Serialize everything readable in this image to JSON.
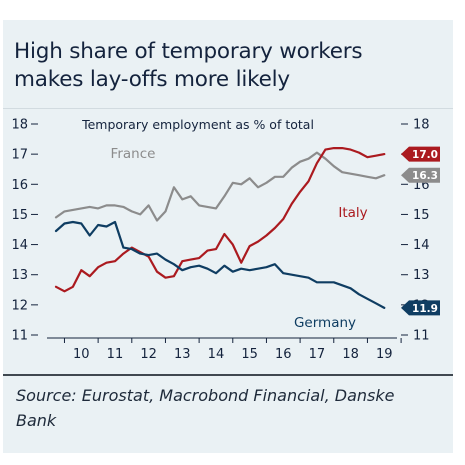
{
  "title": {
    "line1": "High share of temporary workers",
    "line2": "makes lay-offs  more likely"
  },
  "source": {
    "line1": "Source: Eurostat, Macrobond Financial, Danske",
    "line2": "Bank"
  },
  "chart_data": {
    "type": "line",
    "title": "Temporary employment as % of total",
    "ylim": [
      11,
      18
    ],
    "xlim": [
      2009.6,
      2019.7
    ],
    "y_ticks": [
      11,
      12,
      13,
      14,
      15,
      16,
      17,
      18
    ],
    "x_ticks": [
      10,
      11,
      12,
      13,
      14,
      15,
      16,
      17,
      18,
      19
    ],
    "grid": false,
    "series": [
      {
        "name": "France",
        "color": "#8c8c8c",
        "end_label": "16.3",
        "x": [
          2009.75,
          2010.0,
          2010.25,
          2010.5,
          2010.75,
          2011.0,
          2011.25,
          2011.5,
          2011.75,
          2012.0,
          2012.25,
          2012.5,
          2012.75,
          2013.0,
          2013.25,
          2013.5,
          2013.75,
          2014.0,
          2014.25,
          2014.5,
          2014.75,
          2015.0,
          2015.25,
          2015.5,
          2015.75,
          2016.0,
          2016.25,
          2016.5,
          2016.75,
          2017.0,
          2017.25,
          2017.5,
          2017.75,
          2018.0,
          2018.25,
          2018.5,
          2018.75,
          2019.0,
          2019.25,
          2019.5
        ],
        "y": [
          14.9,
          15.1,
          15.15,
          15.2,
          15.25,
          15.2,
          15.3,
          15.3,
          15.25,
          15.1,
          15.0,
          15.3,
          14.8,
          15.1,
          15.9,
          15.5,
          15.6,
          15.3,
          15.25,
          15.2,
          15.6,
          16.05,
          16.0,
          16.2,
          15.9,
          16.05,
          16.25,
          16.25,
          16.55,
          16.75,
          16.85,
          17.05,
          16.85,
          16.6,
          16.4,
          16.35,
          16.3,
          16.25,
          16.2,
          16.3
        ]
      },
      {
        "name": "Italy",
        "color": "#ab1a1f",
        "end_label": "17.0",
        "x": [
          2009.75,
          2010.0,
          2010.25,
          2010.5,
          2010.75,
          2011.0,
          2011.25,
          2011.5,
          2011.75,
          2012.0,
          2012.25,
          2012.5,
          2012.75,
          2013.0,
          2013.25,
          2013.5,
          2013.75,
          2014.0,
          2014.25,
          2014.5,
          2014.75,
          2015.0,
          2015.25,
          2015.5,
          2015.75,
          2016.0,
          2016.25,
          2016.5,
          2016.75,
          2017.0,
          2017.25,
          2017.5,
          2017.75,
          2018.0,
          2018.25,
          2018.5,
          2018.75,
          2019.0,
          2019.25,
          2019.5
        ],
        "y": [
          12.6,
          12.45,
          12.6,
          13.15,
          12.95,
          13.25,
          13.4,
          13.45,
          13.7,
          13.9,
          13.75,
          13.6,
          13.1,
          12.9,
          12.95,
          13.45,
          13.5,
          13.55,
          13.8,
          13.85,
          14.35,
          14.0,
          13.4,
          13.95,
          14.1,
          14.3,
          14.55,
          14.85,
          15.35,
          15.75,
          16.1,
          16.7,
          17.15,
          17.2,
          17.2,
          17.15,
          17.05,
          16.9,
          16.95,
          17.0
        ]
      },
      {
        "name": "Germany",
        "color": "#0f3d62",
        "end_label": "11.9",
        "x": [
          2009.75,
          2010.0,
          2010.25,
          2010.5,
          2010.75,
          2011.0,
          2011.25,
          2011.5,
          2011.75,
          2012.0,
          2012.25,
          2012.5,
          2012.75,
          2013.0,
          2013.25,
          2013.5,
          2013.75,
          2014.0,
          2014.25,
          2014.5,
          2014.75,
          2015.0,
          2015.25,
          2015.5,
          2015.75,
          2016.0,
          2016.25,
          2016.5,
          2016.75,
          2017.0,
          2017.25,
          2017.5,
          2017.75,
          2018.0,
          2018.25,
          2018.5,
          2018.75,
          2019.0,
          2019.25,
          2019.5
        ],
        "y": [
          14.45,
          14.7,
          14.75,
          14.7,
          14.3,
          14.65,
          14.6,
          14.75,
          13.9,
          13.85,
          13.7,
          13.65,
          13.7,
          13.5,
          13.35,
          13.15,
          13.25,
          13.3,
          13.2,
          13.05,
          13.3,
          13.1,
          13.2,
          13.15,
          13.2,
          13.25,
          13.35,
          13.05,
          13.0,
          12.95,
          12.9,
          12.75,
          12.75,
          12.75,
          12.65,
          12.55,
          12.35,
          12.2,
          12.05,
          11.9
        ]
      }
    ]
  }
}
